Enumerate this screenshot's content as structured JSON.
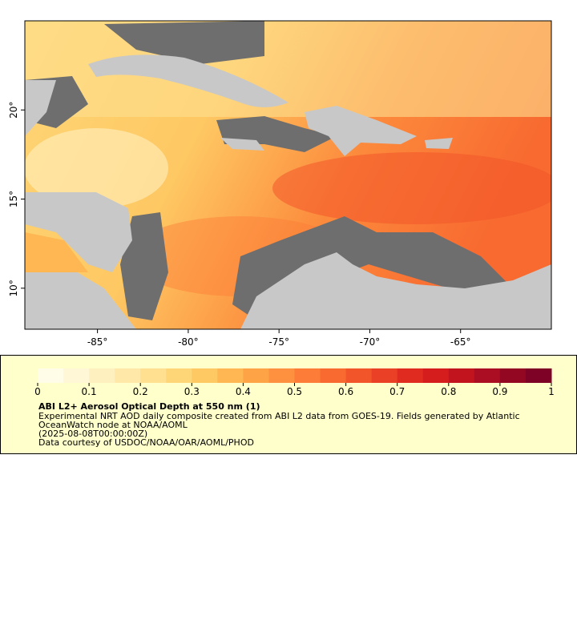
{
  "map": {
    "xlim": [
      -89,
      -60
    ],
    "ylim": [
      7.7,
      25
    ],
    "xticks": [
      {
        "value": -85,
        "label": "-85°"
      },
      {
        "value": -80,
        "label": "-80°"
      },
      {
        "value": -75,
        "label": "-75°"
      },
      {
        "value": -70,
        "label": "-70°"
      },
      {
        "value": -65,
        "label": "-65°"
      }
    ],
    "yticks": [
      {
        "value": 10,
        "label": "10°"
      },
      {
        "value": 15,
        "label": "15°"
      },
      {
        "value": 20,
        "label": "20°"
      }
    ]
  },
  "colorbar": {
    "range": [
      0,
      1
    ],
    "ticks": [
      0,
      0.1,
      0.2,
      0.3,
      0.4,
      0.5,
      0.6,
      0.7,
      0.8,
      0.9,
      1
    ],
    "colors": [
      "#fffce8",
      "#fff7d6",
      "#fff0c0",
      "#ffe8a8",
      "#fee090",
      "#fed677",
      "#fec863",
      "#feb752",
      "#fea446",
      "#fd9140",
      "#fc7c38",
      "#f86a30",
      "#f2552a",
      "#ea4025",
      "#e02b20",
      "#d51d1e",
      "#c2141f",
      "#ab0d22",
      "#940723",
      "#7d0225"
    ]
  },
  "legend": {
    "title": "ABI L2+ Aerosol Optical Depth at 550 nm (1)",
    "lines": [
      "Experimental NRT AOD daily composite created from ABI L2 data from GOES-19. Fields generated by Atlantic",
      "OceanWatch node at NOAA/AOML",
      "(2025-08-08T00:00:00Z)",
      "Data courtesy of USDOC/NOAA/OAR/AOML/PHOD"
    ]
  }
}
